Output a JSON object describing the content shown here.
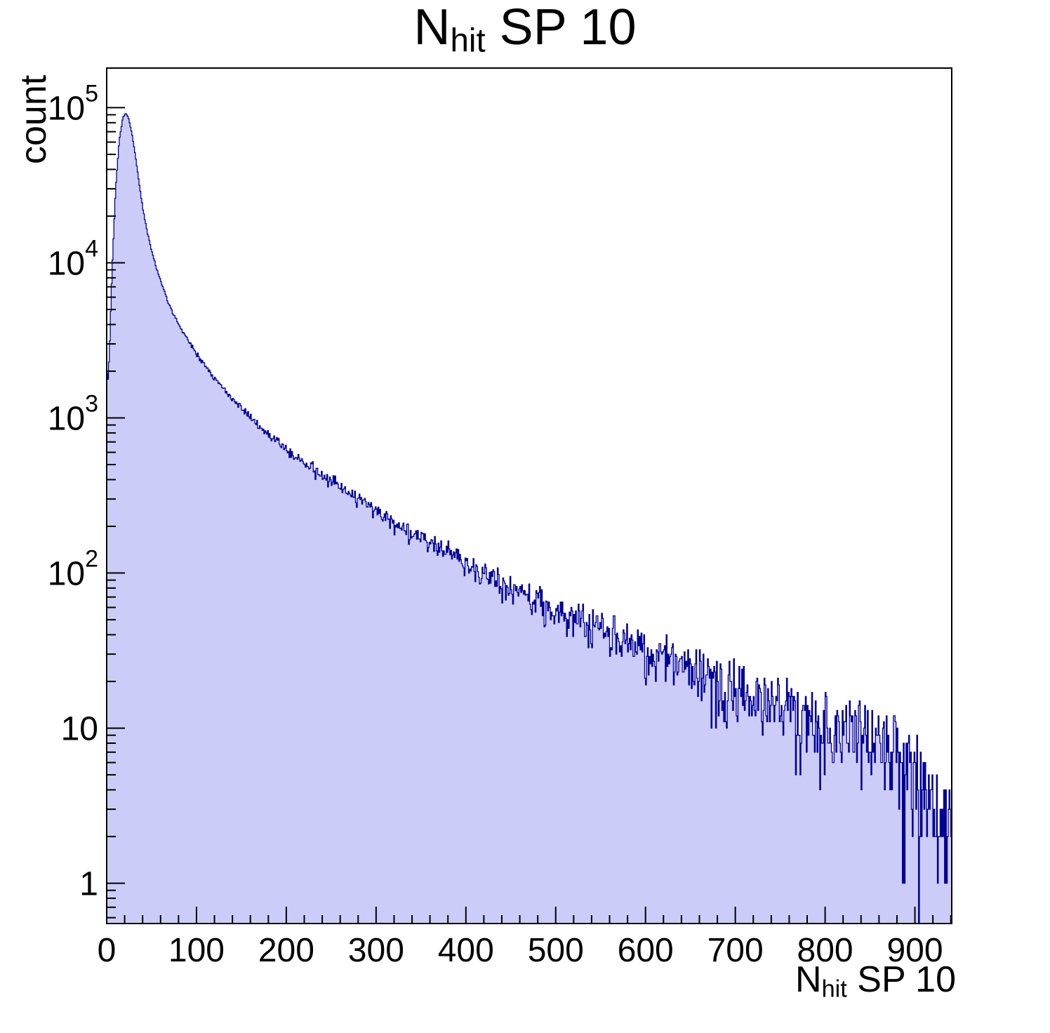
{
  "chart_data": {
    "type": "histogram",
    "title": {
      "main": "N",
      "sub": "hit",
      "rest": " SP 10"
    },
    "xlabel": {
      "main": "N",
      "sub": "hit",
      "rest": " SP 10"
    },
    "ylabel": "count",
    "x_range": [
      0,
      941
    ],
    "y_range": [
      0.55,
      180000
    ],
    "y_scale": "log",
    "bin_width": 1,
    "x_minor_step": 20,
    "noise_seed": 42,
    "x_major_ticks": [
      {
        "value": 0,
        "label": "0"
      },
      {
        "value": 100,
        "label": "100"
      },
      {
        "value": 200,
        "label": "200"
      },
      {
        "value": 300,
        "label": "300"
      },
      {
        "value": 400,
        "label": "400"
      },
      {
        "value": 500,
        "label": "500"
      },
      {
        "value": 600,
        "label": "600"
      },
      {
        "value": 700,
        "label": "700"
      },
      {
        "value": 800,
        "label": "800"
      },
      {
        "value": 900,
        "label": "900"
      }
    ],
    "y_major_ticks": [
      {
        "value": 1,
        "mant": "1",
        "exp": ""
      },
      {
        "value": 10,
        "mant": "10",
        "exp": ""
      },
      {
        "value": 100,
        "mant": "10",
        "exp": "2"
      },
      {
        "value": 1000,
        "mant": "10",
        "exp": "3"
      },
      {
        "value": 10000,
        "mant": "10",
        "exp": "4"
      },
      {
        "value": 100000,
        "mant": "10",
        "exp": "5"
      }
    ],
    "style": {
      "fill": "#ccccf8",
      "line": "#000099",
      "frame": "#000000",
      "text": "#000000"
    },
    "anchors": [
      [
        0,
        2600
      ],
      [
        1,
        1500
      ],
      [
        3,
        2600
      ],
      [
        6,
        9000
      ],
      [
        10,
        30000
      ],
      [
        14,
        62000
      ],
      [
        18,
        86000
      ],
      [
        21,
        92000
      ],
      [
        24,
        87000
      ],
      [
        28,
        69000
      ],
      [
        32,
        49000
      ],
      [
        36,
        33000
      ],
      [
        40,
        23000
      ],
      [
        45,
        16000
      ],
      [
        50,
        12000
      ],
      [
        55,
        9400
      ],
      [
        60,
        7700
      ],
      [
        70,
        5300
      ],
      [
        80,
        4050
      ],
      [
        90,
        3200
      ],
      [
        100,
        2600
      ],
      [
        110,
        2150
      ],
      [
        120,
        1800
      ],
      [
        130,
        1550
      ],
      [
        140,
        1330
      ],
      [
        150,
        1150
      ],
      [
        160,
        1000
      ],
      [
        170,
        885
      ],
      [
        180,
        785
      ],
      [
        190,
        700
      ],
      [
        200,
        625
      ],
      [
        210,
        565
      ],
      [
        220,
        510
      ],
      [
        230,
        465
      ],
      [
        240,
        425
      ],
      [
        250,
        390
      ],
      [
        260,
        356
      ],
      [
        270,
        325
      ],
      [
        280,
        297
      ],
      [
        290,
        271
      ],
      [
        300,
        248
      ],
      [
        320,
        210
      ],
      [
        340,
        180
      ],
      [
        360,
        155
      ],
      [
        380,
        133
      ],
      [
        400,
        114
      ],
      [
        420,
        100
      ],
      [
        440,
        87
      ],
      [
        460,
        76
      ],
      [
        480,
        67
      ],
      [
        500,
        59
      ],
      [
        520,
        52
      ],
      [
        540,
        46
      ],
      [
        560,
        40
      ],
      [
        580,
        35
      ],
      [
        600,
        31
      ],
      [
        620,
        28
      ],
      [
        640,
        25
      ],
      [
        660,
        22
      ],
      [
        680,
        20
      ],
      [
        700,
        18
      ],
      [
        720,
        16
      ],
      [
        740,
        14
      ],
      [
        760,
        13
      ],
      [
        780,
        12
      ],
      [
        800,
        11
      ],
      [
        820,
        10
      ],
      [
        840,
        9
      ],
      [
        860,
        8
      ],
      [
        880,
        7
      ],
      [
        900,
        5
      ],
      [
        915,
        3.5
      ],
      [
        925,
        2.5
      ],
      [
        941,
        1.3
      ]
    ]
  }
}
